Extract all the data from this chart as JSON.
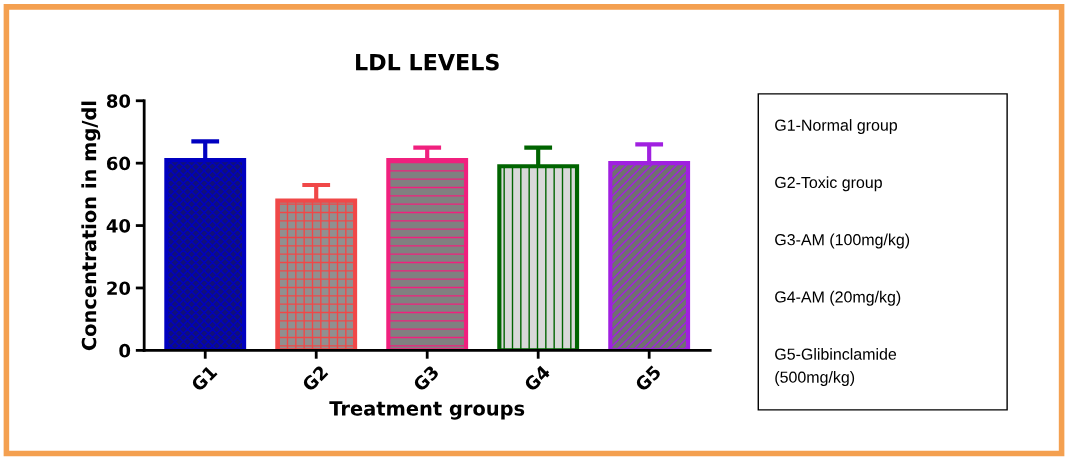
{
  "chart_data": {
    "type": "bar",
    "title": "LDL LEVELS",
    "xlabel": "Treatment groups",
    "ylabel": "Concentration in mg/dl",
    "categories": [
      "G1",
      "G2",
      "G3",
      "G4",
      "G5"
    ],
    "values": [
      61,
      48,
      61,
      59,
      60
    ],
    "errors": [
      [
        61,
        67
      ],
      [
        48,
        53
      ],
      [
        61,
        65
      ],
      [
        59,
        65
      ],
      [
        60,
        66
      ]
    ],
    "colors": [
      "#0000c0",
      "#f04848",
      "#f0207e",
      "#006400",
      "#a020e0"
    ],
    "ylim": [
      0,
      80
    ],
    "yticks": [
      0,
      20,
      40,
      60,
      80
    ],
    "grid": false,
    "annotations": [
      "G1-Normal group",
      "G2-Toxic group",
      "G3-AM (100mg/kg)",
      "G4-AM (20mg/kg)",
      "G5-Glibinclamide\n(500mg/kg)"
    ]
  }
}
